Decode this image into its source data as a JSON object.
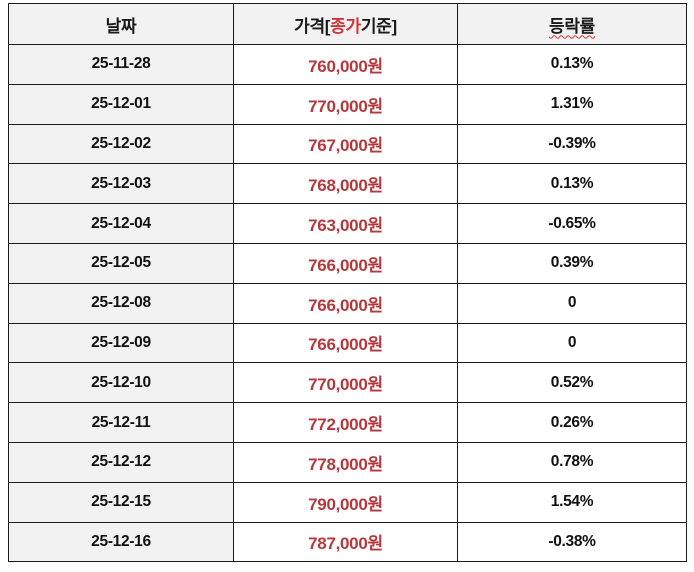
{
  "table": {
    "headers": {
      "date": "날짜",
      "price_prefix": "가격[",
      "price_highlight": "종가",
      "price_suffix": "기준]",
      "rate": "등락률"
    },
    "colors": {
      "price_text": "#b5383c",
      "header_highlight": "#d0353a",
      "header_bg": "#f2f2f2",
      "date_bg": "#f2f2f2",
      "border": "#1a1a1a"
    },
    "rows": [
      {
        "date": "25-11-28",
        "price": "760,000원",
        "rate": "0.13%"
      },
      {
        "date": "25-12-01",
        "price": "770,000원",
        "rate": "1.31%"
      },
      {
        "date": "25-12-02",
        "price": "767,000원",
        "rate": "-0.39%"
      },
      {
        "date": "25-12-03",
        "price": "768,000원",
        "rate": "0.13%"
      },
      {
        "date": "25-12-04",
        "price": "763,000원",
        "rate": "-0.65%"
      },
      {
        "date": "25-12-05",
        "price": "766,000원",
        "rate": "0.39%"
      },
      {
        "date": "25-12-08",
        "price": "766,000원",
        "rate": "0"
      },
      {
        "date": "25-12-09",
        "price": "766,000원",
        "rate": "0"
      },
      {
        "date": "25-12-10",
        "price": "770,000원",
        "rate": "0.52%"
      },
      {
        "date": "25-12-11",
        "price": "772,000원",
        "rate": "0.26%"
      },
      {
        "date": "25-12-12",
        "price": "778,000원",
        "rate": "0.78%"
      },
      {
        "date": "25-12-15",
        "price": "790,000원",
        "rate": "1.54%"
      },
      {
        "date": "25-12-16",
        "price": "787,000원",
        "rate": "-0.38%"
      }
    ]
  }
}
